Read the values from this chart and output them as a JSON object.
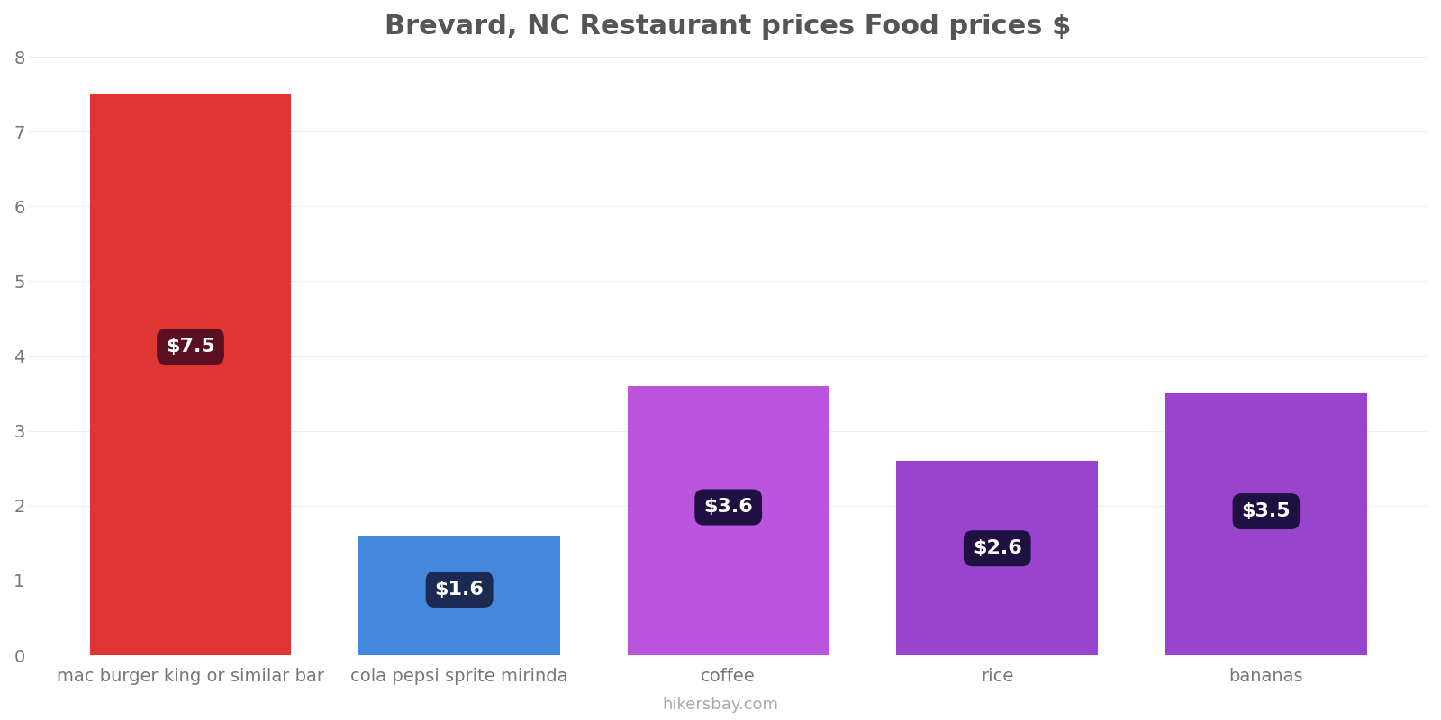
{
  "title": "Brevard, NC Restaurant prices Food prices $",
  "categories": [
    "mac burger king or similar bar",
    "cola pepsi sprite mirinda",
    "coffee",
    "rice",
    "bananas"
  ],
  "values": [
    7.5,
    1.6,
    3.6,
    2.6,
    3.5
  ],
  "bar_colors": [
    "#e03535",
    "#4488dd",
    "#bb55dd",
    "#9944cc",
    "#9944cc"
  ],
  "label_texts": [
    "$7.5",
    "$1.6",
    "$3.6",
    "$2.6",
    "$3.5"
  ],
  "label_bg_colors": [
    "#5a1020",
    "#1a2a50",
    "#1e1040",
    "#1e1040",
    "#1e1040"
  ],
  "ylim": [
    0,
    8
  ],
  "yticks": [
    0,
    1,
    2,
    3,
    4,
    5,
    6,
    7,
    8
  ],
  "title_fontsize": 22,
  "tick_fontsize": 14,
  "label_fontsize": 16,
  "watermark": "hikersbay.com",
  "background_color": "#ffffff",
  "grid_color": "#eeeeee"
}
